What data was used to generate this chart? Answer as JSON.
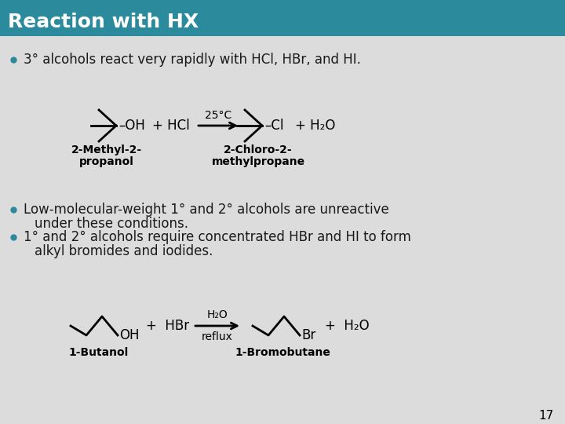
{
  "title": "Reaction with HX",
  "title_bg_color": "#2B8A9B",
  "title_text_color": "#FFFFFF",
  "slide_bg_color": "#DCDCDC",
  "bullet_color": "#2B8A9B",
  "text_color": "#1A1A1A",
  "bullet1": "3° alcohols react very rapidly with HCl, HBr, and HI.",
  "bullet2a": "Low-molecular-weight 1° and 2° alcohols are unreactive",
  "bullet2b": "under these conditions.",
  "bullet3a": "1° and 2° alcohols require concentrated HBr and HI to form",
  "bullet3b": "alkyl bromides and iodides.",
  "label1a": "2-Methyl-2-",
  "label1b": "propanol",
  "label2a": "2-Chloro-2-",
  "label2b": "methylpropane",
  "label3": "1-Butanol",
  "label4": "1-Bromobutane",
  "page_num": "17",
  "rxn1_arrow_label_top": "25°C",
  "rxn2_arrow_label_top": "H₂O",
  "rxn2_arrow_label_bot": "reflux"
}
